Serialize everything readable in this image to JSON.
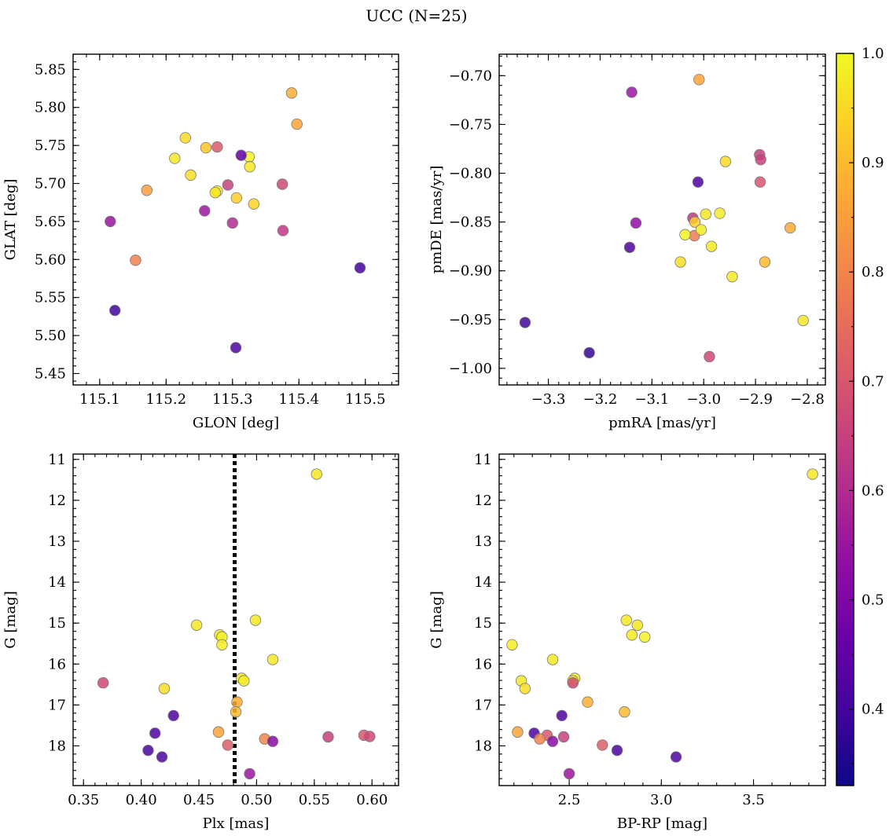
{
  "title": "UCC (N=25)",
  "colorbar": {
    "range": [
      0.33,
      1.0
    ],
    "ticks": [
      0.4,
      0.5,
      0.6,
      0.7,
      0.8,
      0.9,
      1.0
    ],
    "tick_labels": [
      "0.4",
      "0.5",
      "0.6",
      "0.7",
      "0.8",
      "0.9",
      "1.0"
    ],
    "colormap": "plasma"
  },
  "chart_data": [
    {
      "type": "scatter",
      "xlabel": "GLON [deg]",
      "ylabel": "GLAT [deg]",
      "xlim": [
        115.06,
        115.55
      ],
      "ylim": [
        5.435,
        5.87
      ],
      "invert_y": false,
      "xticks": [
        115.1,
        115.2,
        115.3,
        115.4,
        115.5
      ],
      "xtick_labels": [
        "115.1",
        "115.2",
        "115.3",
        "115.4",
        "115.5"
      ],
      "yticks": [
        5.45,
        5.5,
        5.55,
        5.6,
        5.65,
        5.7,
        5.75,
        5.8,
        5.85
      ],
      "ytick_labels": [
        "5.45",
        "5.50",
        "5.55",
        "5.60",
        "5.65",
        "5.70",
        "5.75",
        "5.80",
        "5.85"
      ],
      "x": [
        115.389,
        115.397,
        115.229,
        115.26,
        115.277,
        115.325,
        115.313,
        115.213,
        115.326,
        115.237,
        115.171,
        115.293,
        115.375,
        115.277,
        115.274,
        115.306,
        115.332,
        115.116,
        115.258,
        115.3,
        115.376,
        115.154,
        115.492,
        115.123,
        115.305
      ],
      "y": [
        5.819,
        5.778,
        5.76,
        5.747,
        5.748,
        5.735,
        5.737,
        5.733,
        5.722,
        5.711,
        5.691,
        5.698,
        5.699,
        5.69,
        5.688,
        5.681,
        5.673,
        5.65,
        5.664,
        5.648,
        5.638,
        5.599,
        5.589,
        5.533,
        5.484
      ],
      "c": [
        0.88,
        0.86,
        0.95,
        0.92,
        0.71,
        0.99,
        0.45,
        0.97,
        0.97,
        0.96,
        0.85,
        0.65,
        0.67,
        0.98,
        0.97,
        0.93,
        0.94,
        0.55,
        0.55,
        0.6,
        0.63,
        0.79,
        0.4,
        0.4,
        0.42
      ]
    },
    {
      "type": "scatter",
      "xlabel": "pmRA [mas/yr]",
      "ylabel": "pmDE [mas/yr]",
      "xlim": [
        -3.395,
        -2.765
      ],
      "ylim": [
        -1.017,
        -0.678
      ],
      "invert_y": false,
      "xticks": [
        -3.3,
        -3.2,
        -3.1,
        -3.0,
        -2.9,
        -2.8
      ],
      "xtick_labels": [
        "−3.3",
        "−3.2",
        "−3.1",
        "−3.0",
        "−2.9",
        "−2.8"
      ],
      "yticks": [
        -1.0,
        -0.95,
        -0.9,
        -0.85,
        -0.8,
        -0.75,
        -0.7
      ],
      "ytick_labels": [
        "−1.00",
        "−0.95",
        "−0.90",
        "−0.85",
        "−0.80",
        "−0.75",
        "−0.70"
      ],
      "x": [
        -3.009,
        -3.139,
        -2.958,
        -2.892,
        -2.89,
        -3.011,
        -2.891,
        -2.969,
        -2.996,
        -3.021,
        -3.017,
        -3.018,
        -3.131,
        -3.005,
        -3.036,
        -2.833,
        -3.143,
        -2.985,
        -3.045,
        -2.882,
        -2.945,
        -2.808,
        -3.345,
        -3.221,
        -2.989
      ],
      "y": [
        -0.704,
        -0.717,
        -0.788,
        -0.781,
        -0.786,
        -0.809,
        -0.809,
        -0.841,
        -0.842,
        -0.846,
        -0.85,
        -0.864,
        -0.851,
        -0.858,
        -0.863,
        -0.856,
        -0.876,
        -0.875,
        -0.891,
        -0.891,
        -0.906,
        -0.951,
        -0.953,
        -0.984,
        -0.988
      ],
      "c": [
        0.86,
        0.55,
        0.95,
        0.65,
        0.65,
        0.42,
        0.7,
        0.98,
        0.97,
        0.63,
        0.93,
        0.78,
        0.53,
        0.98,
        0.99,
        0.87,
        0.42,
        0.97,
        0.96,
        0.9,
        0.98,
        0.97,
        0.4,
        0.38,
        0.67
      ]
    },
    {
      "type": "scatter",
      "xlabel": "Plx [mas]",
      "ylabel": "G [mag]",
      "xlim": [
        0.341,
        0.623
      ],
      "ylim": [
        18.97,
        10.87
      ],
      "invert_y": true,
      "xticks": [
        0.35,
        0.4,
        0.45,
        0.5,
        0.55,
        0.6
      ],
      "xtick_labels": [
        "0.35",
        "0.40",
        "0.45",
        "0.50",
        "0.55",
        "0.60"
      ],
      "yticks": [
        11,
        12,
        13,
        14,
        15,
        16,
        17,
        18
      ],
      "ytick_labels": [
        "11",
        "12",
        "13",
        "14",
        "15",
        "16",
        "17",
        "18"
      ],
      "vline": 0.481,
      "x": [
        0.552,
        0.499,
        0.448,
        0.468,
        0.47,
        0.47,
        0.514,
        0.487,
        0.489,
        0.367,
        0.42,
        0.483,
        0.482,
        0.428,
        0.467,
        0.412,
        0.507,
        0.514,
        0.562,
        0.593,
        0.598,
        0.475,
        0.406,
        0.418,
        0.494
      ],
      "y": [
        11.36,
        14.93,
        15.05,
        15.29,
        15.34,
        15.53,
        15.89,
        16.35,
        16.41,
        16.46,
        16.6,
        16.93,
        17.17,
        17.26,
        17.66,
        17.69,
        17.83,
        17.89,
        17.78,
        17.74,
        17.77,
        17.98,
        18.11,
        18.27,
        18.68
      ],
      "c": [
        0.97,
        0.97,
        0.97,
        0.98,
        0.99,
        0.98,
        0.97,
        0.98,
        0.98,
        0.67,
        0.96,
        0.88,
        0.9,
        0.42,
        0.86,
        0.42,
        0.8,
        0.52,
        0.65,
        0.7,
        0.67,
        0.72,
        0.41,
        0.42,
        0.55
      ]
    },
    {
      "type": "scatter",
      "xlabel": "BP-RP [mag]",
      "ylabel": "G [mag]",
      "xlim": [
        2.12,
        3.89
      ],
      "ylim": [
        18.97,
        10.87
      ],
      "invert_y": true,
      "xticks": [
        2.5,
        3.0,
        3.5
      ],
      "xtick_labels": [
        "2.5",
        "3.0",
        "3.5"
      ],
      "yticks": [
        11,
        12,
        13,
        14,
        15,
        16,
        17,
        18
      ],
      "ytick_labels": [
        "11",
        "12",
        "13",
        "14",
        "15",
        "16",
        "17",
        "18"
      ],
      "x": [
        3.82,
        2.81,
        2.87,
        2.84,
        2.91,
        2.19,
        2.41,
        2.53,
        2.52,
        2.24,
        2.26,
        2.6,
        2.8,
        2.46,
        2.22,
        2.31,
        2.38,
        2.34,
        2.47,
        2.41,
        2.68,
        2.76,
        3.08,
        2.5,
        2.52
      ],
      "y": [
        11.36,
        14.93,
        15.05,
        15.29,
        15.34,
        15.53,
        15.89,
        16.35,
        16.41,
        16.41,
        16.6,
        16.93,
        17.17,
        17.26,
        17.66,
        17.69,
        17.74,
        17.83,
        17.78,
        17.89,
        17.98,
        18.11,
        18.27,
        18.68,
        16.46
      ],
      "c": [
        0.97,
        0.97,
        0.97,
        0.98,
        0.99,
        0.98,
        0.97,
        0.98,
        0.98,
        0.97,
        0.96,
        0.88,
        0.9,
        0.42,
        0.86,
        0.42,
        0.7,
        0.8,
        0.65,
        0.52,
        0.72,
        0.41,
        0.42,
        0.55,
        0.67
      ]
    }
  ]
}
